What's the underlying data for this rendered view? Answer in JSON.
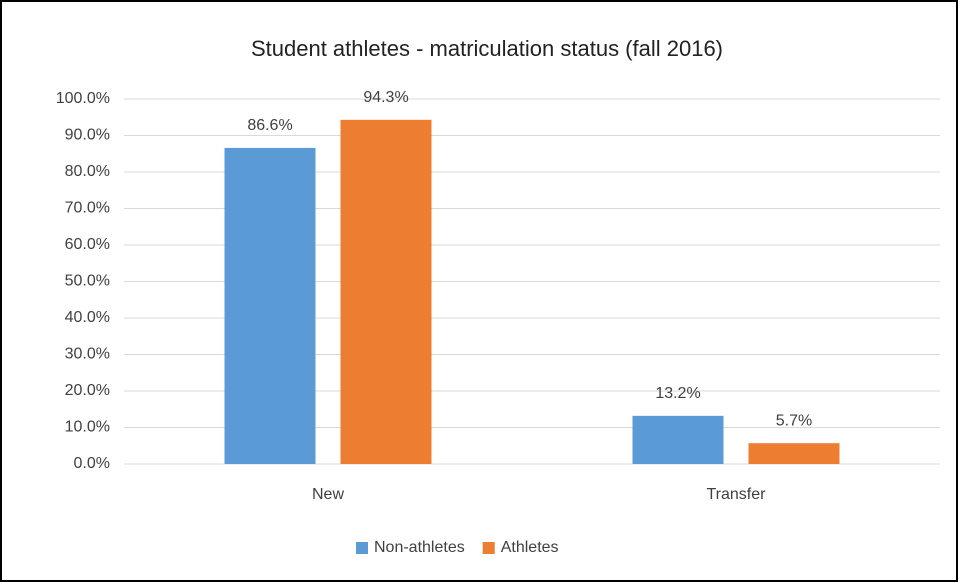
{
  "chart_data": {
    "type": "bar",
    "title": "Student athletes - matriculation status (fall 2016)",
    "categories": [
      "New",
      "Transfer"
    ],
    "series": [
      {
        "name": "Non-athletes",
        "color": "#5b9bd5",
        "values": [
          86.6,
          13.2
        ],
        "value_labels": [
          "86.6%",
          "13.2%"
        ]
      },
      {
        "name": "Athletes",
        "color": "#ed7d31",
        "values": [
          94.3,
          5.7
        ],
        "value_labels": [
          "94.3%",
          "5.7%"
        ]
      }
    ],
    "ylim": [
      0,
      100
    ],
    "yticks": [
      {
        "value": 0,
        "label": "0.0%"
      },
      {
        "value": 10,
        "label": "10.0%"
      },
      {
        "value": 20,
        "label": "20.0%"
      },
      {
        "value": 30,
        "label": "30.0%"
      },
      {
        "value": 40,
        "label": "40.0%"
      },
      {
        "value": 50,
        "label": "50.0%"
      },
      {
        "value": 60,
        "label": "60.0%"
      },
      {
        "value": 70,
        "label": "70.0%"
      },
      {
        "value": 80,
        "label": "80.0%"
      },
      {
        "value": 90,
        "label": "90.0%"
      },
      {
        "value": 100,
        "label": "100.0%"
      }
    ],
    "grid": true,
    "legend": "bottom"
  }
}
